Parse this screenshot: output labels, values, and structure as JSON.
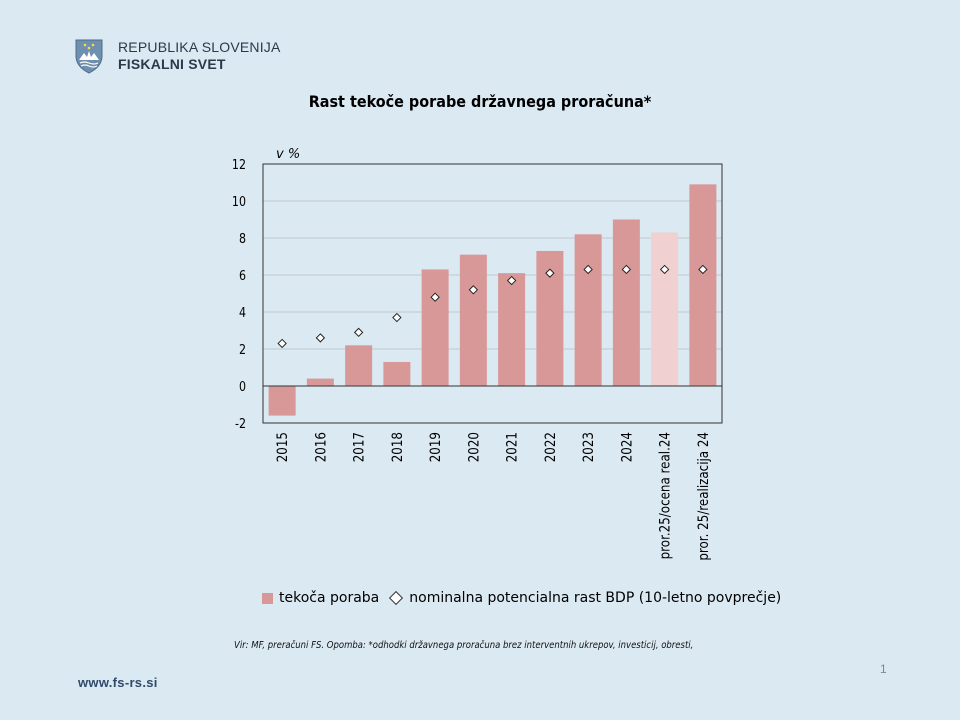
{
  "header": {
    "org_name": "REPUBLIKA SLOVENIJA",
    "org_sub": "FISKALNI SVET",
    "logo_icon": "coat-of-arms-icon"
  },
  "chart_data": {
    "type": "bar",
    "title": "Rast tekoče porabe državnega proračuna*",
    "ylabel": "v %",
    "xlabel": "",
    "ylim": [
      -2,
      12
    ],
    "yticks": [
      -2,
      0,
      2,
      4,
      6,
      8,
      10,
      12
    ],
    "grid": true,
    "legend_position": "bottom",
    "categories": [
      "2015",
      "2016",
      "2017",
      "2018",
      "2019",
      "2020",
      "2021",
      "2022",
      "2023",
      "2024",
      "pror.25/ocena real.24",
      "pror. 25/realizacija 24"
    ],
    "series": [
      {
        "name": "tekoča poraba",
        "mark": "bar",
        "color": "#d99898",
        "highlight_color": "#f0d0d0",
        "highlight_index": 10,
        "values": [
          -1.6,
          0.4,
          2.2,
          1.3,
          6.3,
          7.1,
          6.1,
          7.3,
          8.2,
          9.0,
          8.3,
          10.9
        ]
      },
      {
        "name": "nominalna potencialna rast BDP (10-letno povprečje)",
        "mark": "diamond",
        "color": "#ffffff",
        "values": [
          2.3,
          2.6,
          2.9,
          3.7,
          4.8,
          5.2,
          5.7,
          6.1,
          6.3,
          6.3,
          6.3,
          6.3
        ]
      }
    ]
  },
  "footer": {
    "note": "Vir: MF, preračuni FS. Opomba: *odhodki državnega proračuna brez interventnih ukrepov, investicij, obresti,",
    "page_number": "1",
    "website": "www.fs-rs.si"
  }
}
